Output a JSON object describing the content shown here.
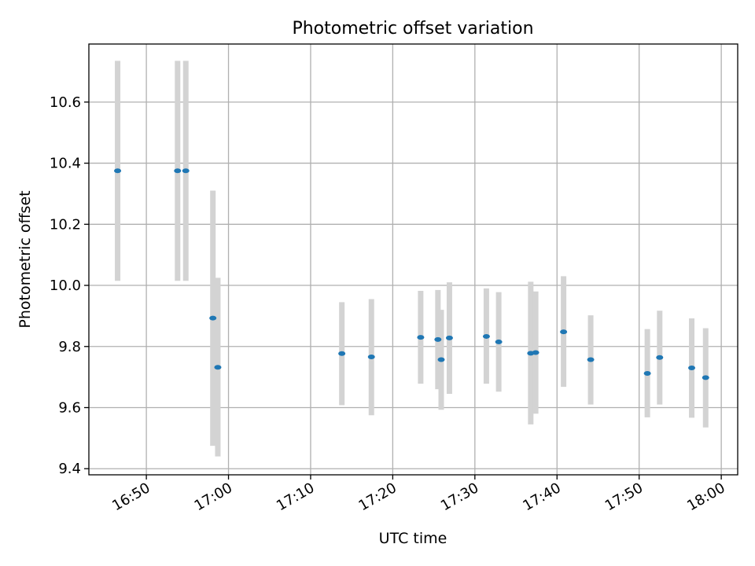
{
  "chart_data": {
    "type": "scatter",
    "title": "Photometric offset variation",
    "xlabel": "UTC time",
    "ylabel": "Photometric offset",
    "x_is_time": true,
    "xlim": [
      "16:43",
      "18:02"
    ],
    "ylim": [
      9.38,
      10.79
    ],
    "x_ticks": [
      "16:50",
      "17:00",
      "17:10",
      "17:20",
      "17:30",
      "17:40",
      "17:50",
      "18:00"
    ],
    "y_ticks": [
      9.4,
      9.6,
      9.8,
      10.0,
      10.2,
      10.4,
      10.6
    ],
    "grid": true,
    "marker_color": "#1f77b4",
    "errorbar_color": "#d3d3d3",
    "points": [
      {
        "x": "16:46:30",
        "y": 10.375,
        "ylow": 10.015,
        "yhigh": 10.735
      },
      {
        "x": "16:53:48",
        "y": 10.375,
        "ylow": 10.015,
        "yhigh": 10.735
      },
      {
        "x": "16:54:48",
        "y": 10.375,
        "ylow": 10.015,
        "yhigh": 10.735
      },
      {
        "x": "16:58:06",
        "y": 9.893,
        "ylow": 9.475,
        "yhigh": 10.31
      },
      {
        "x": "16:58:42",
        "y": 9.732,
        "ylow": 9.44,
        "yhigh": 10.025
      },
      {
        "x": "17:13:48",
        "y": 9.777,
        "ylow": 9.608,
        "yhigh": 9.945
      },
      {
        "x": "17:17:24",
        "y": 9.766,
        "ylow": 9.575,
        "yhigh": 9.955
      },
      {
        "x": "17:23:24",
        "y": 9.83,
        "ylow": 9.678,
        "yhigh": 9.982
      },
      {
        "x": "17:25:30",
        "y": 9.823,
        "ylow": 9.66,
        "yhigh": 9.985
      },
      {
        "x": "17:25:54",
        "y": 9.757,
        "ylow": 9.593,
        "yhigh": 9.92
      },
      {
        "x": "17:26:54",
        "y": 9.828,
        "ylow": 9.645,
        "yhigh": 10.01
      },
      {
        "x": "17:31:24",
        "y": 9.833,
        "ylow": 9.678,
        "yhigh": 9.99
      },
      {
        "x": "17:32:54",
        "y": 9.815,
        "ylow": 9.652,
        "yhigh": 9.978
      },
      {
        "x": "17:36:48",
        "y": 9.778,
        "ylow": 9.545,
        "yhigh": 10.012
      },
      {
        "x": "17:37:24",
        "y": 9.78,
        "ylow": 9.58,
        "yhigh": 9.98
      },
      {
        "x": "17:40:48",
        "y": 9.848,
        "ylow": 9.668,
        "yhigh": 10.03
      },
      {
        "x": "17:44:06",
        "y": 9.757,
        "ylow": 9.61,
        "yhigh": 9.902
      },
      {
        "x": "17:51:00",
        "y": 9.712,
        "ylow": 9.568,
        "yhigh": 9.857
      },
      {
        "x": "17:52:30",
        "y": 9.764,
        "ylow": 9.61,
        "yhigh": 9.917
      },
      {
        "x": "17:56:24",
        "y": 9.73,
        "ylow": 9.567,
        "yhigh": 9.892
      },
      {
        "x": "17:58:06",
        "y": 9.698,
        "ylow": 9.535,
        "yhigh": 9.86
      }
    ]
  }
}
